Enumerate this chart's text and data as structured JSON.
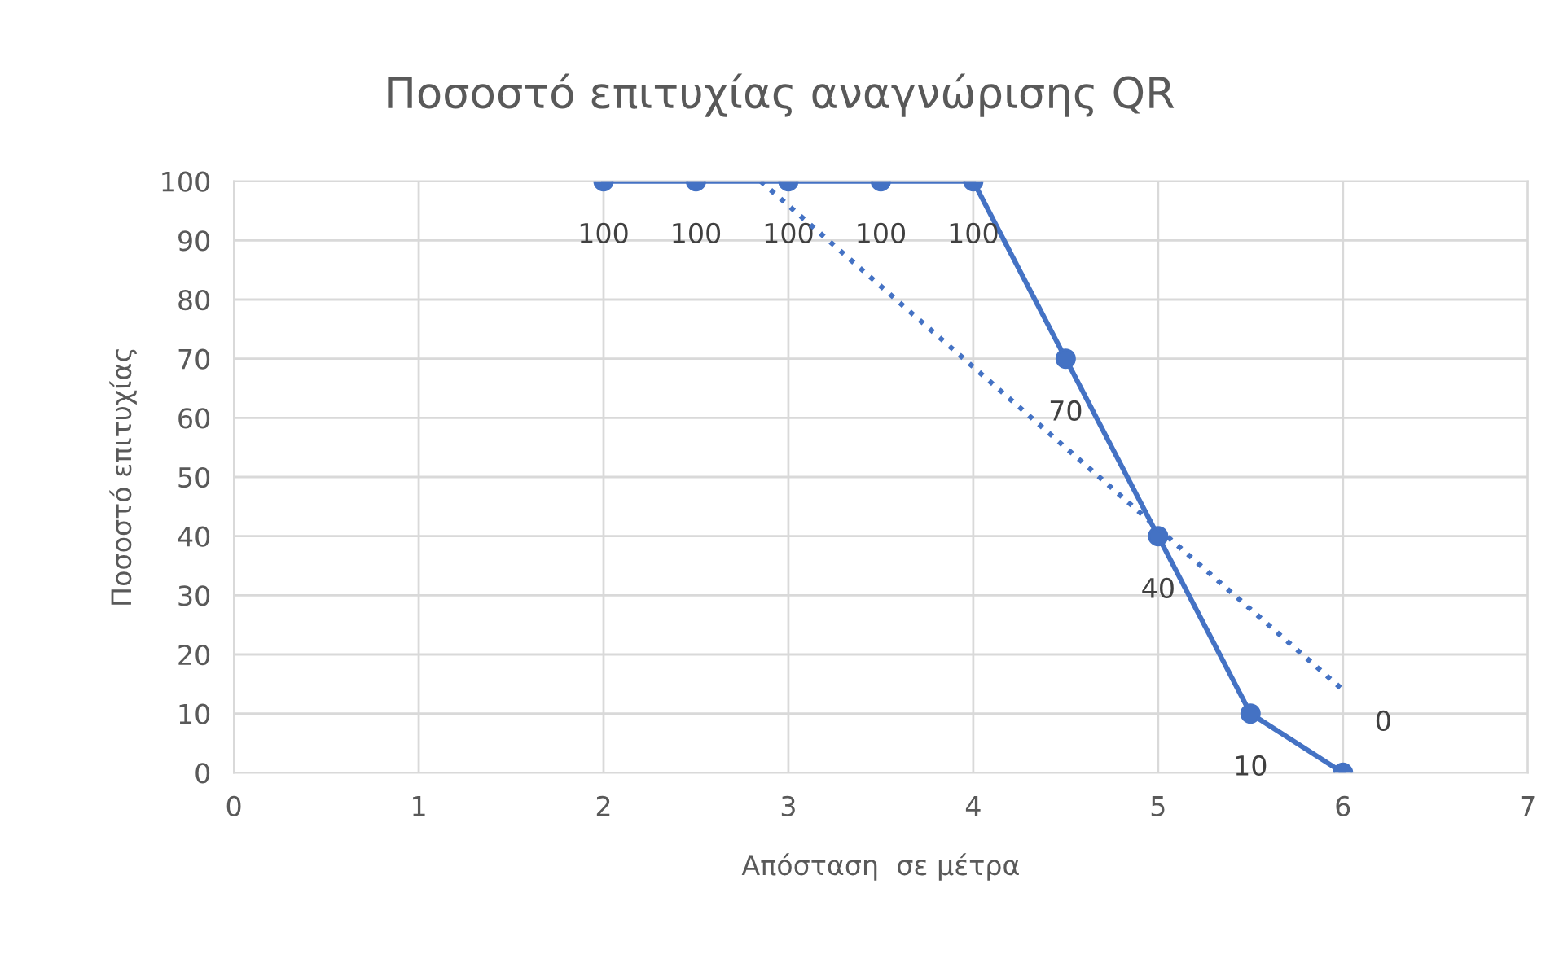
{
  "chart_data": {
    "type": "line",
    "title": "Ποσοστό επιτυχίας αναγνώρισης QR",
    "xlabel": "Απόσταση  σε μέτρα",
    "ylabel": "Ποσοστό επιτυχίας",
    "x": [
      2,
      2.5,
      3,
      3.5,
      4,
      4.5,
      5,
      5.5,
      6
    ],
    "series": [
      {
        "color": "#4472c4",
        "values": [
          100,
          100,
          100,
          100,
          100,
          70,
          40,
          10,
          0
        ],
        "marker": "circle",
        "line_style": "solid",
        "data_labels": true
      },
      {
        "color": "#4472c4",
        "x": [
          2.85,
          6
        ],
        "values": [
          100,
          14
        ],
        "marker": "none",
        "line_style": "dotted"
      }
    ],
    "xlim": [
      0,
      7
    ],
    "xticks": [
      0,
      1,
      2,
      3,
      4,
      5,
      6,
      7
    ],
    "ylim": [
      0,
      100
    ],
    "yticks": [
      0,
      10,
      20,
      30,
      40,
      50,
      60,
      70,
      80,
      90,
      100
    ],
    "grid": true,
    "legend": false
  }
}
